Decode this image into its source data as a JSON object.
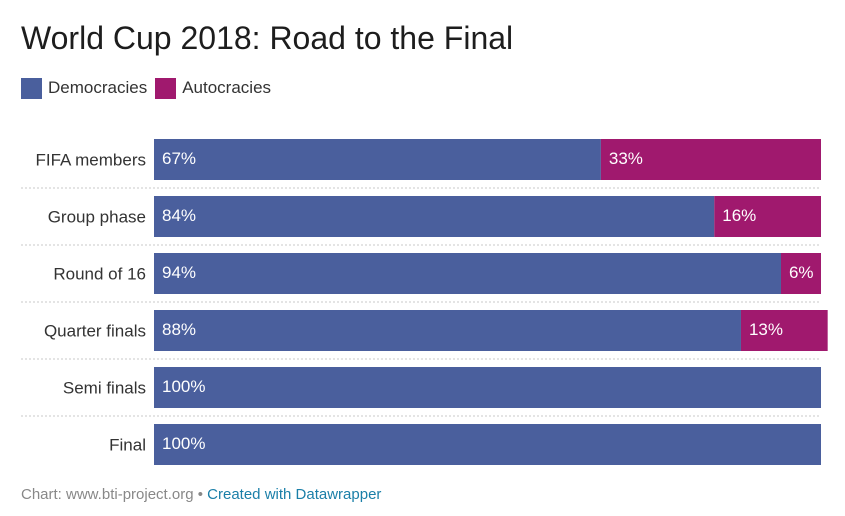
{
  "title": "World Cup 2018: Road to the Final",
  "legend": [
    {
      "label": "Democracies",
      "color": "#4a5f9d"
    },
    {
      "label": "Autocracies",
      "color": "#a0196e"
    }
  ],
  "chart_data": {
    "type": "bar",
    "orientation": "horizontal",
    "stacked": true,
    "categories": [
      "FIFA members",
      "Group phase",
      "Round of 16",
      "Quarter finals",
      "Semi finals",
      "Final"
    ],
    "series": [
      {
        "name": "Democracies",
        "color": "#4a5f9d",
        "values": [
          67,
          84,
          94,
          88,
          100,
          100
        ],
        "labels": [
          "67%",
          "84%",
          "94%",
          "88%",
          "100%",
          "100%"
        ]
      },
      {
        "name": "Autocracies",
        "color": "#a0196e",
        "values": [
          33,
          16,
          6,
          13,
          0,
          0
        ],
        "labels": [
          "33%",
          "16%",
          "6%",
          "13%",
          "",
          ""
        ]
      }
    ],
    "xlim": [
      0,
      100
    ],
    "grid": false,
    "legend_position": "top-left"
  },
  "footer": {
    "source": "Chart: www.bti-project.org",
    "separator": " • ",
    "credit": "Created with Datawrapper"
  }
}
